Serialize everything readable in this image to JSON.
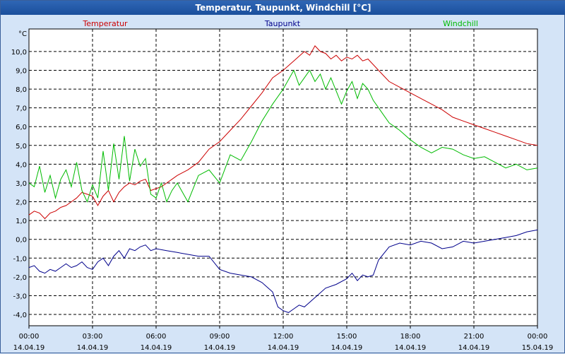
{
  "window": {
    "title": "Temperatur, Taupunkt, Windchill [°C]"
  },
  "chart_data": {
    "type": "line",
    "title": "Temperatur, Taupunkt, Windchill [°C]",
    "y_unit_label": "°C",
    "ylim": [
      -4.6,
      11.2
    ],
    "y_ticks": [
      "10,0",
      "9,0",
      "8,0",
      "7,0",
      "6,0",
      "5,0",
      "4,0",
      "3,0",
      "2,0",
      "1,0",
      "0,0",
      "-1,0",
      "-2,0",
      "-3,0",
      "-4,0"
    ],
    "y_tick_values": [
      10,
      9,
      8,
      7,
      6,
      5,
      4,
      3,
      2,
      1,
      0,
      -1,
      -2,
      -3,
      -4
    ],
    "x_ticks": [
      {
        "time": "00:00",
        "date": "14.04.19"
      },
      {
        "time": "03:00",
        "date": "14.04.19"
      },
      {
        "time": "06:00",
        "date": "14.04.19"
      },
      {
        "time": "09:00",
        "date": "14.04.19"
      },
      {
        "time": "12:00",
        "date": "14.04.19"
      },
      {
        "time": "15:00",
        "date": "14.04.19"
      },
      {
        "time": "18:00",
        "date": "14.04.19"
      },
      {
        "time": "21:00",
        "date": "14.04.19"
      },
      {
        "time": "00:00",
        "date": "15.04.19"
      }
    ],
    "grid": true,
    "legend_position": "top",
    "series": [
      {
        "name": "Temperatur",
        "color": "#cc0000",
        "x": [
          0,
          0.25,
          0.5,
          0.75,
          1,
          1.25,
          1.5,
          1.75,
          2,
          2.25,
          2.5,
          2.75,
          3,
          3.25,
          3.5,
          3.75,
          4,
          4.25,
          4.5,
          4.75,
          5,
          5.25,
          5.5,
          5.75,
          6,
          6.25,
          6.5,
          6.75,
          7,
          7.5,
          8,
          8.5,
          9,
          9.5,
          10,
          10.5,
          11,
          11.5,
          12,
          12.5,
          13,
          13.25,
          13.5,
          13.75,
          14,
          14.25,
          14.5,
          14.75,
          15,
          15.25,
          15.5,
          15.75,
          16,
          16.25,
          16.5,
          16.75,
          17,
          17.5,
          18,
          18.5,
          19,
          19.5,
          20,
          20.5,
          21,
          21.5,
          22,
          22.5,
          23,
          23.5,
          24
        ],
        "y": [
          1.3,
          1.5,
          1.4,
          1.1,
          1.4,
          1.5,
          1.7,
          1.8,
          2.0,
          2.2,
          2.5,
          2.4,
          2.3,
          1.8,
          2.3,
          2.6,
          2.0,
          2.5,
          2.8,
          3.0,
          2.9,
          3.1,
          3.2,
          2.6,
          2.7,
          2.8,
          3.0,
          3.2,
          3.4,
          3.7,
          4.1,
          4.8,
          5.2,
          5.8,
          6.4,
          7.1,
          7.8,
          8.6,
          9.0,
          9.5,
          10.0,
          9.8,
          10.3,
          10.0,
          9.9,
          9.6,
          9.8,
          9.5,
          9.7,
          9.6,
          9.8,
          9.5,
          9.6,
          9.3,
          9.0,
          8.7,
          8.4,
          8.1,
          7.8,
          7.5,
          7.2,
          6.9,
          6.5,
          6.3,
          6.1,
          5.9,
          5.7,
          5.5,
          5.3,
          5.1,
          5.0
        ]
      },
      {
        "name": "Taupunkt",
        "color": "#00008b",
        "x": [
          0,
          0.25,
          0.5,
          0.75,
          1,
          1.25,
          1.5,
          1.75,
          2,
          2.25,
          2.5,
          2.75,
          3,
          3.25,
          3.5,
          3.75,
          4,
          4.25,
          4.5,
          4.75,
          5,
          5.25,
          5.5,
          5.75,
          6,
          6.5,
          7,
          7.5,
          8,
          8.5,
          9,
          9.5,
          10,
          10.5,
          11,
          11.5,
          11.75,
          12,
          12.25,
          12.5,
          12.75,
          13,
          13.5,
          14,
          14.5,
          15,
          15.25,
          15.5,
          15.75,
          16,
          16.25,
          16.5,
          17,
          17.5,
          18,
          18.5,
          19,
          19.5,
          20,
          20.5,
          21,
          21.5,
          22,
          22.5,
          23,
          23.5,
          24
        ],
        "y": [
          -1.5,
          -1.4,
          -1.7,
          -1.8,
          -1.6,
          -1.7,
          -1.5,
          -1.3,
          -1.5,
          -1.4,
          -1.2,
          -1.5,
          -1.6,
          -1.2,
          -1.0,
          -1.4,
          -0.9,
          -0.6,
          -1.0,
          -0.5,
          -0.6,
          -0.4,
          -0.3,
          -0.6,
          -0.5,
          -0.6,
          -0.7,
          -0.8,
          -0.9,
          -0.9,
          -1.6,
          -1.8,
          -1.9,
          -2.0,
          -2.3,
          -2.8,
          -3.6,
          -3.8,
          -3.9,
          -3.7,
          -3.5,
          -3.6,
          -3.1,
          -2.6,
          -2.4,
          -2.1,
          -1.8,
          -2.2,
          -1.9,
          -2.0,
          -1.9,
          -1.1,
          -0.4,
          -0.2,
          -0.3,
          -0.1,
          -0.2,
          -0.5,
          -0.4,
          -0.1,
          -0.2,
          -0.1,
          0.0,
          0.1,
          0.2,
          0.4,
          0.5
        ]
      },
      {
        "name": "Windchill",
        "color": "#00bb00",
        "x": [
          0,
          0.25,
          0.5,
          0.75,
          1,
          1.25,
          1.5,
          1.75,
          2,
          2.25,
          2.5,
          2.75,
          3,
          3.25,
          3.5,
          3.75,
          4,
          4.25,
          4.5,
          4.75,
          5,
          5.25,
          5.5,
          5.75,
          6,
          6.25,
          6.5,
          6.75,
          7,
          7.5,
          8,
          8.5,
          9,
          9.5,
          10,
          10.5,
          11,
          11.5,
          12,
          12.25,
          12.5,
          12.75,
          13,
          13.25,
          13.5,
          13.75,
          14,
          14.25,
          14.5,
          14.75,
          15,
          15.25,
          15.5,
          15.75,
          16,
          16.25,
          16.5,
          16.75,
          17,
          17.5,
          18,
          18.5,
          19,
          19.5,
          20,
          20.5,
          21,
          21.5,
          22,
          22.5,
          23,
          23.5,
          24
        ],
        "y": [
          3.0,
          2.8,
          3.9,
          2.5,
          3.4,
          2.2,
          3.2,
          3.7,
          2.8,
          4.1,
          2.6,
          2.0,
          2.9,
          2.2,
          4.7,
          2.6,
          5.1,
          3.2,
          5.5,
          3.1,
          4.8,
          3.9,
          4.3,
          2.4,
          2.2,
          3.0,
          2.0,
          2.6,
          3.0,
          2.0,
          3.4,
          3.7,
          3.0,
          4.5,
          4.2,
          5.2,
          6.3,
          7.2,
          8.0,
          8.5,
          9.0,
          8.2,
          8.6,
          9.0,
          8.4,
          8.8,
          8.0,
          8.6,
          7.9,
          7.2,
          7.9,
          8.4,
          7.5,
          8.3,
          8.0,
          7.4,
          7.0,
          6.6,
          6.2,
          5.8,
          5.3,
          4.9,
          4.6,
          4.9,
          4.8,
          4.5,
          4.3,
          4.4,
          4.1,
          3.8,
          4.0,
          3.7,
          3.8
        ]
      }
    ]
  }
}
